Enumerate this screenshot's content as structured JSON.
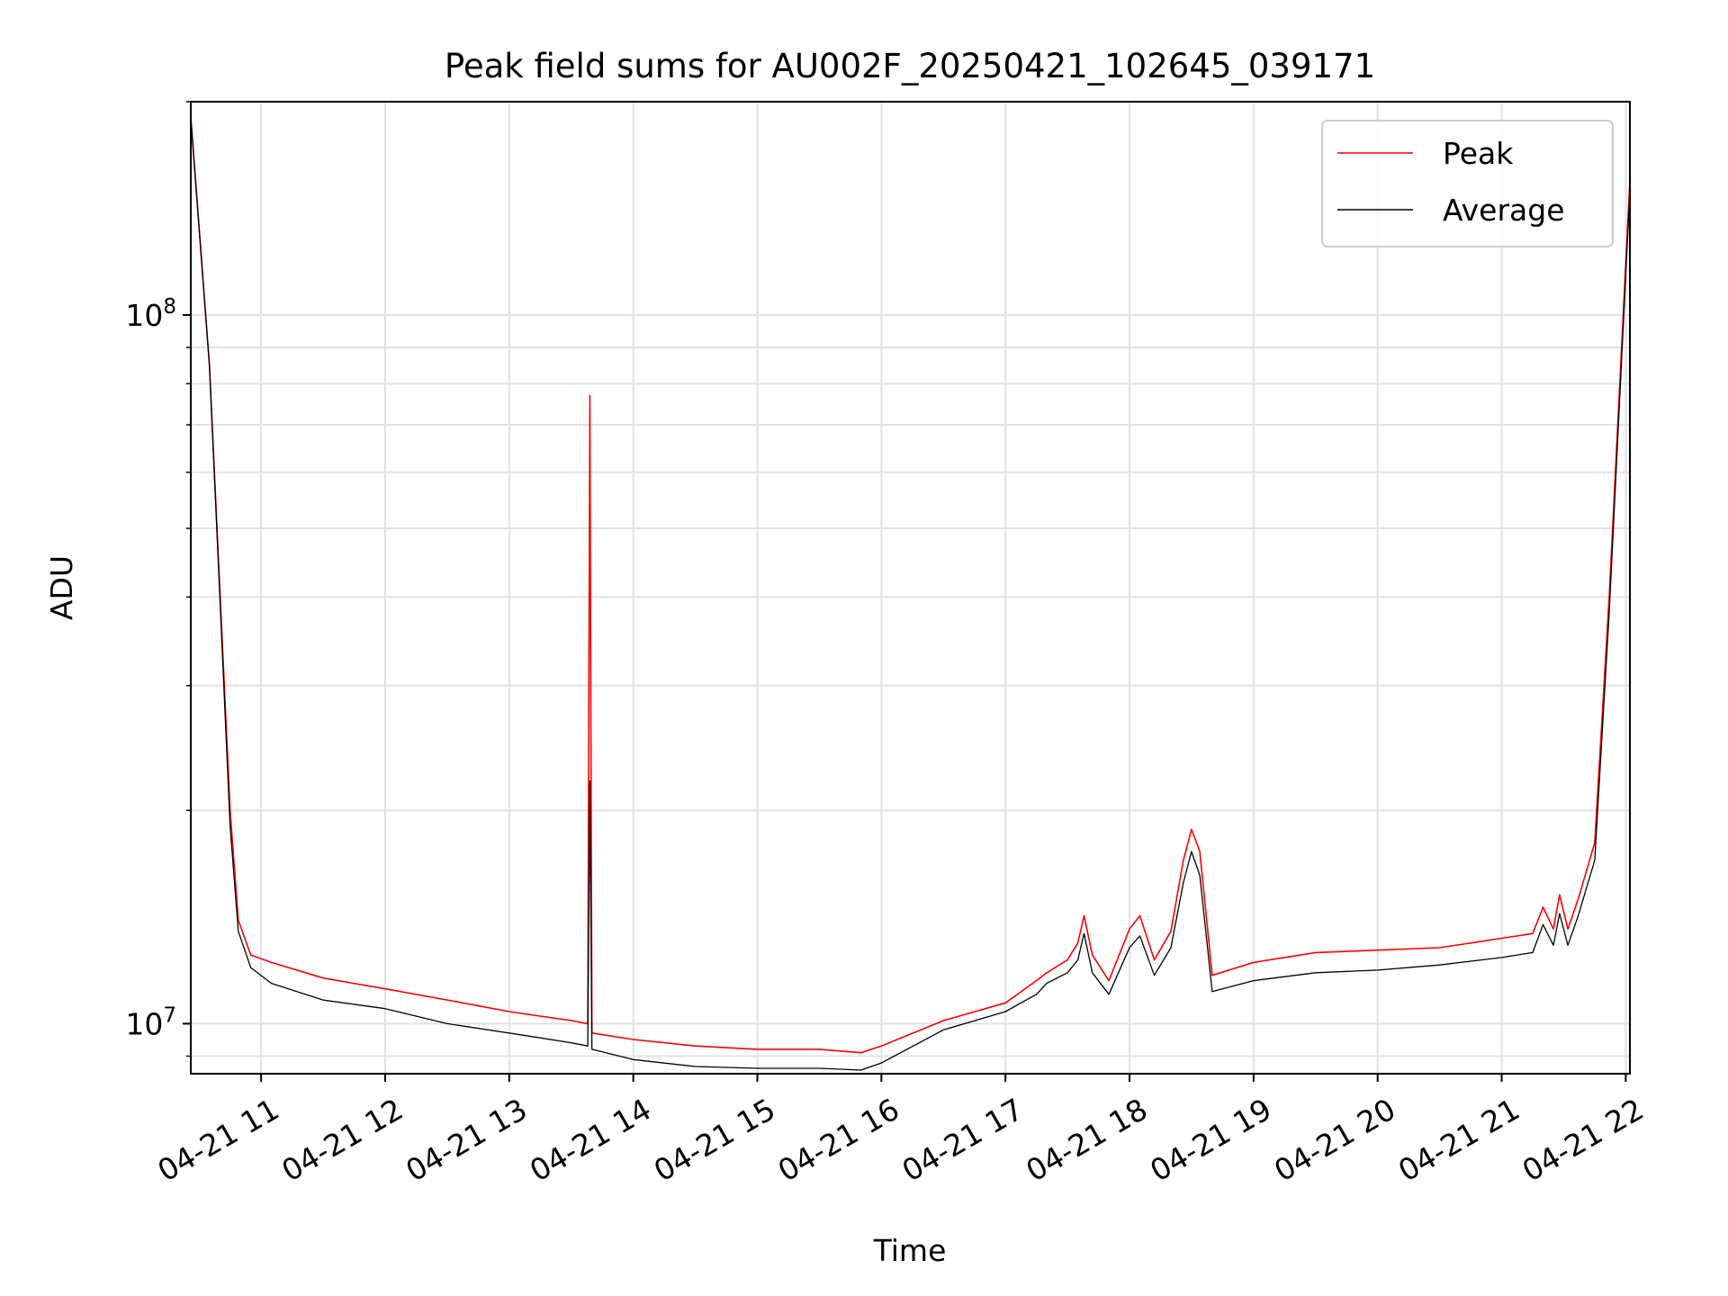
{
  "chart_data": {
    "type": "line",
    "title": "Peak field sums for AU002F_20250421_102645_039171",
    "xlabel": "Time",
    "ylabel": "ADU",
    "yscale": "log",
    "grid": true,
    "legend_position": "top-right",
    "xlim": [
      "2025-04-21 10:26",
      "2025-04-21 22:02"
    ],
    "ylim": [
      8500000,
      200000000
    ],
    "x_tick_labels": [
      "04-21 11",
      "04-21 12",
      "04-21 13",
      "04-21 14",
      "04-21 15",
      "04-21 16",
      "04-21 17",
      "04-21 18",
      "04-21 19",
      "04-21 20",
      "04-21 21",
      "04-21 22"
    ],
    "y_tick_labels": [
      {
        "base": "10",
        "exp": "7"
      },
      {
        "base": "10",
        "exp": "8"
      }
    ],
    "series": [
      {
        "name": "Peak",
        "color": "#ff0000",
        "x": [
          "2025-04-21 10:26",
          "2025-04-21 10:35",
          "2025-04-21 10:45",
          "2025-04-21 10:49",
          "2025-04-21 10:55",
          "2025-04-21 11:05",
          "2025-04-21 11:30",
          "2025-04-21 12:00",
          "2025-04-21 12:30",
          "2025-04-21 13:00",
          "2025-04-21 13:30",
          "2025-04-21 13:38",
          "2025-04-21 13:39",
          "2025-04-21 13:40",
          "2025-04-21 14:00",
          "2025-04-21 14:30",
          "2025-04-21 15:00",
          "2025-04-21 15:30",
          "2025-04-21 15:50",
          "2025-04-21 16:00",
          "2025-04-21 16:30",
          "2025-04-21 17:00",
          "2025-04-21 17:15",
          "2025-04-21 17:20",
          "2025-04-21 17:30",
          "2025-04-21 17:35",
          "2025-04-21 17:38",
          "2025-04-21 17:42",
          "2025-04-21 17:50",
          "2025-04-21 18:00",
          "2025-04-21 18:05",
          "2025-04-21 18:12",
          "2025-04-21 18:20",
          "2025-04-21 18:26",
          "2025-04-21 18:30",
          "2025-04-21 18:34",
          "2025-04-21 18:40",
          "2025-04-21 19:00",
          "2025-04-21 19:30",
          "2025-04-21 20:00",
          "2025-04-21 20:30",
          "2025-04-21 21:00",
          "2025-04-21 21:15",
          "2025-04-21 21:20",
          "2025-04-21 21:25",
          "2025-04-21 21:28",
          "2025-04-21 21:32",
          "2025-04-21 21:37",
          "2025-04-21 21:45",
          "2025-04-21 21:52",
          "2025-04-21 22:02"
        ],
        "values": [
          190000000,
          85000000,
          20000000,
          14000000,
          12500000,
          12200000,
          11600000,
          11200000,
          10800000,
          10400000,
          10100000,
          10000000,
          77000000,
          9700000,
          9500000,
          9300000,
          9200000,
          9200000,
          9100000,
          9300000,
          10100000,
          10700000,
          11500000,
          11800000,
          12300000,
          13000000,
          14200000,
          12500000,
          11500000,
          13600000,
          14200000,
          12300000,
          13500000,
          17000000,
          18800000,
          17500000,
          11700000,
          12200000,
          12600000,
          12700000,
          12800000,
          13200000,
          13400000,
          14600000,
          13600000,
          15200000,
          13600000,
          15000000,
          18000000,
          40000000,
          155000000
        ]
      },
      {
        "name": "Average",
        "color": "#000000",
        "x": [
          "2025-04-21 10:26",
          "2025-04-21 10:35",
          "2025-04-21 10:45",
          "2025-04-21 10:49",
          "2025-04-21 10:55",
          "2025-04-21 11:05",
          "2025-04-21 11:30",
          "2025-04-21 12:00",
          "2025-04-21 12:30",
          "2025-04-21 13:00",
          "2025-04-21 13:30",
          "2025-04-21 13:38",
          "2025-04-21 13:39",
          "2025-04-21 13:40",
          "2025-04-21 14:00",
          "2025-04-21 14:30",
          "2025-04-21 15:00",
          "2025-04-21 15:30",
          "2025-04-21 15:50",
          "2025-04-21 16:00",
          "2025-04-21 16:30",
          "2025-04-21 17:00",
          "2025-04-21 17:15",
          "2025-04-21 17:20",
          "2025-04-21 17:30",
          "2025-04-21 17:35",
          "2025-04-21 17:38",
          "2025-04-21 17:42",
          "2025-04-21 17:50",
          "2025-04-21 18:00",
          "2025-04-21 18:05",
          "2025-04-21 18:12",
          "2025-04-21 18:20",
          "2025-04-21 18:26",
          "2025-04-21 18:30",
          "2025-04-21 18:34",
          "2025-04-21 18:40",
          "2025-04-21 19:00",
          "2025-04-21 19:30",
          "2025-04-21 20:00",
          "2025-04-21 20:30",
          "2025-04-21 21:00",
          "2025-04-21 21:15",
          "2025-04-21 21:20",
          "2025-04-21 21:25",
          "2025-04-21 21:28",
          "2025-04-21 21:32",
          "2025-04-21 21:37",
          "2025-04-21 21:45",
          "2025-04-21 21:52",
          "2025-04-21 22:02"
        ],
        "values": [
          190000000,
          85000000,
          19000000,
          13500000,
          12000000,
          11400000,
          10800000,
          10500000,
          10000000,
          9700000,
          9400000,
          9300000,
          22000000,
          9200000,
          8900000,
          8700000,
          8650000,
          8650000,
          8600000,
          8800000,
          9800000,
          10400000,
          11000000,
          11400000,
          11800000,
          12300000,
          13400000,
          11800000,
          11000000,
          12800000,
          13300000,
          11700000,
          12800000,
          15800000,
          17500000,
          16200000,
          11100000,
          11500000,
          11800000,
          11900000,
          12100000,
          12400000,
          12600000,
          13800000,
          12900000,
          14300000,
          12900000,
          14200000,
          17000000,
          38000000,
          150000000
        ]
      }
    ]
  }
}
